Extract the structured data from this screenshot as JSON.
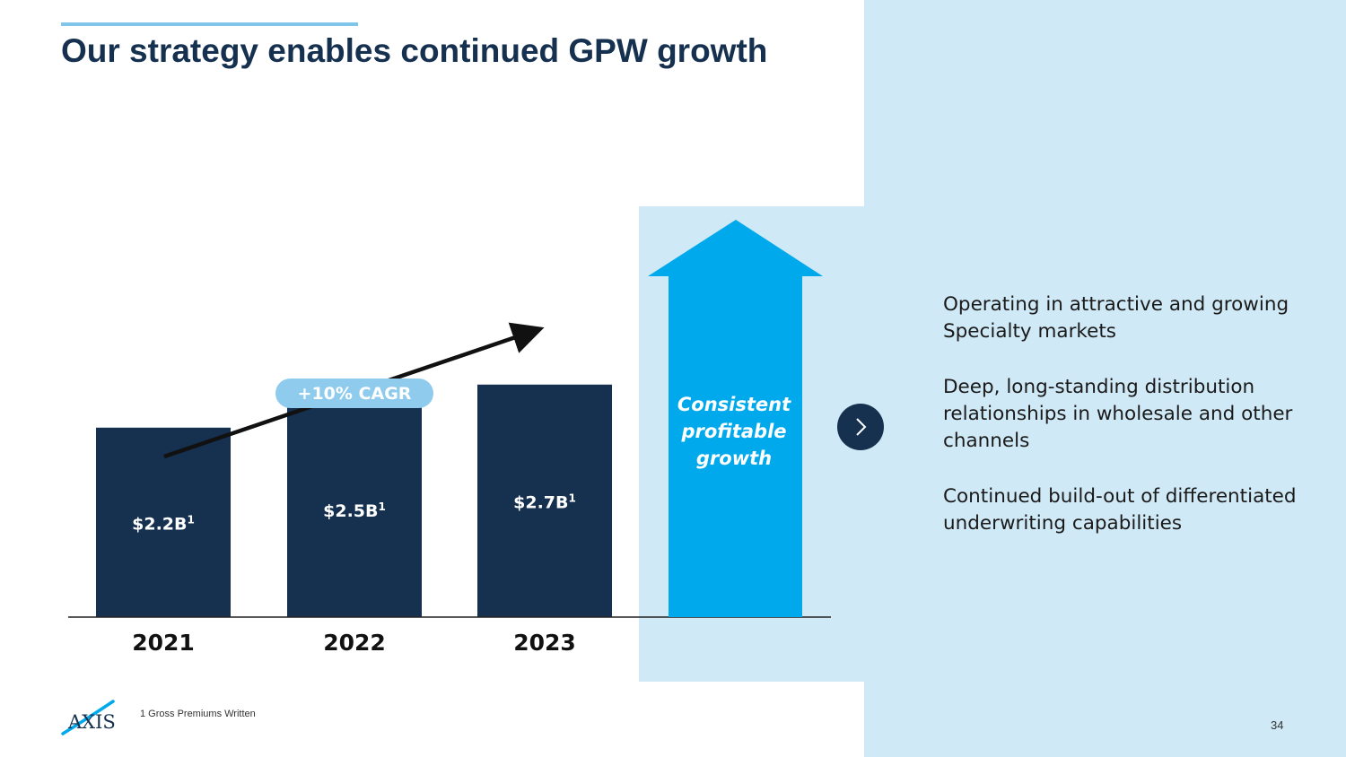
{
  "slide": {
    "title": "Our strategy enables continued GPW growth",
    "footnote": "1 Gross Premiums Written",
    "page_number": "34",
    "logo_text": "AXIS"
  },
  "growth_arrow": {
    "label": "Consistent profitable growth"
  },
  "next_icon": "chevron-right-icon",
  "bullets": [
    "Operating in attractive and growing Specialty markets",
    "Deep, long-standing distribution relationships in wholesale and other channels",
    "Continued build-out of differentiated underwriting capabilities"
  ],
  "colors": {
    "navy": "#16304f",
    "bright_blue": "#00a9ec",
    "light_blue": "#d0e9f6",
    "cagr_pill": "#8fcbed"
  },
  "chart_data": {
    "type": "bar",
    "title": "",
    "xlabel": "",
    "ylabel": "",
    "ylim": [
      0,
      3.75
    ],
    "categories": [
      "2021",
      "2022",
      "2023"
    ],
    "values": [
      2.2,
      2.5,
      2.7
    ],
    "value_labels": [
      "$2.2B",
      "$2.5B",
      "$2.7B"
    ],
    "value_label_superscript": "1",
    "annotation": "+10% CAGR"
  }
}
